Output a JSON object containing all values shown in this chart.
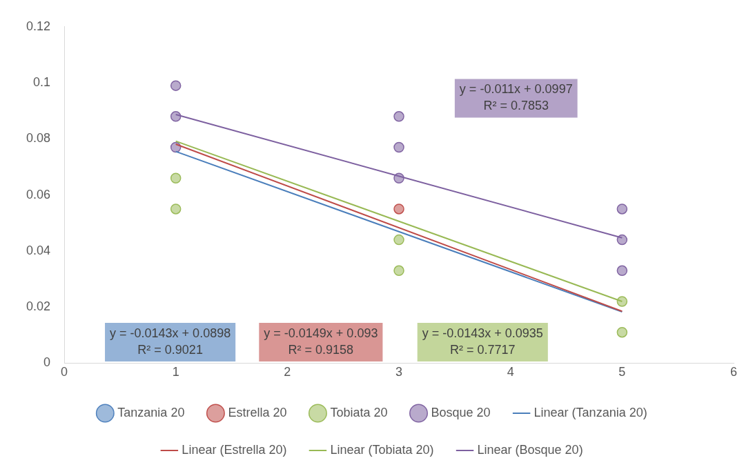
{
  "chart_data": {
    "type": "scatter",
    "xlim": [
      0,
      6
    ],
    "xticks": [
      0,
      1,
      2,
      3,
      4,
      5,
      6
    ],
    "ylim": [
      0,
      0.12
    ],
    "yticks": [
      0,
      0.02,
      0.04,
      0.06,
      0.08,
      0.1,
      0.12
    ],
    "grid": false,
    "legend": "bottom",
    "marker": "circle",
    "series": [
      {
        "name": "Tanzania 20",
        "color": "#4f81bd"
      },
      {
        "name": "Estrella 20",
        "color": "#c0504d",
        "x": [
          3
        ],
        "values": [
          0.055
        ]
      },
      {
        "name": "Tobiata 20",
        "color": "#9bbb59",
        "x": [
          1,
          1,
          3,
          3,
          5,
          5
        ],
        "values": [
          0.066,
          0.055,
          0.044,
          0.033,
          0.022,
          0.011
        ]
      },
      {
        "name": "Bosque 20",
        "color": "#8064a2",
        "x": [
          1,
          1,
          1,
          3,
          3,
          3,
          5,
          5,
          5
        ],
        "values": [
          0.099,
          0.088,
          0.077,
          0.088,
          0.077,
          0.066,
          0.055,
          0.044,
          0.033
        ]
      },
      {
        "name": "Linear (Tanzania 20)",
        "type": "line",
        "color": "#4a7ebb",
        "x": [
          1,
          5
        ],
        "values": [
          0.0755,
          0.0183
        ],
        "marker": "none"
      },
      {
        "name": "Linear (Estrella 20)",
        "type": "line",
        "color": "#be4b48",
        "x": [
          1,
          5
        ],
        "values": [
          0.0781,
          0.0185
        ],
        "marker": "none"
      },
      {
        "name": "Linear (Tobiata 20)",
        "type": "line",
        "color": "#98b954",
        "x": [
          1,
          5
        ],
        "values": [
          0.0792,
          0.022
        ],
        "marker": "none"
      },
      {
        "name": "Linear (Bosque 20)",
        "type": "line",
        "color": "#7d60a0",
        "x": [
          1,
          5
        ],
        "values": [
          0.0887,
          0.0447
        ],
        "marker": "none"
      }
    ],
    "annotations": [
      "y = -0.0143x + 0.0898\nR² = 0.9021",
      "y = -0.0149x + 0.093\nR² = 0.9158",
      "y = -0.0143x + 0.0935\nR² = 0.7717",
      "y = -0.011x + 0.0997\nR² = 0.7853"
    ]
  }
}
